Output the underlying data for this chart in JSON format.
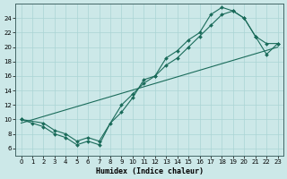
{
  "xlabel": "Humidex (Indice chaleur)",
  "bg_color": "#cce8e8",
  "line_color": "#1a6b5a",
  "grid_color": "#aad4d4",
  "xlim": [
    -0.5,
    23.5
  ],
  "ylim": [
    5,
    26
  ],
  "xticks": [
    0,
    1,
    2,
    3,
    4,
    5,
    6,
    7,
    8,
    9,
    10,
    11,
    12,
    13,
    14,
    15,
    16,
    17,
    18,
    19,
    20,
    21,
    22,
    23
  ],
  "yticks": [
    6,
    8,
    10,
    12,
    14,
    16,
    18,
    20,
    22,
    24
  ],
  "line1_x": [
    0,
    1,
    2,
    3,
    4,
    5,
    6,
    7,
    8,
    9,
    10,
    11,
    12,
    13,
    14,
    15,
    16,
    17,
    18,
    19,
    20,
    21,
    22,
    23
  ],
  "line1_y": [
    10,
    9.5,
    9.0,
    8.0,
    7.5,
    6.5,
    7.0,
    6.5,
    9.5,
    11.0,
    13.0,
    15.5,
    16.0,
    18.5,
    19.5,
    21.0,
    22.0,
    24.5,
    25.5,
    25.0,
    24.0,
    21.5,
    19.0,
    20.5
  ],
  "line2_x": [
    0,
    2,
    3,
    4,
    5,
    6,
    7,
    9,
    10,
    11,
    12,
    13,
    14,
    15,
    16,
    17,
    18,
    19,
    20,
    21,
    22,
    23
  ],
  "line2_y": [
    10,
    9.5,
    8.5,
    8.0,
    7.0,
    7.5,
    7.0,
    12.0,
    13.5,
    15.0,
    16.0,
    17.5,
    18.5,
    20.0,
    21.5,
    23.0,
    24.5,
    25.0,
    24.0,
    21.5,
    20.5,
    20.5
  ],
  "line3_x": [
    0,
    23
  ],
  "line3_y": [
    9.5,
    20.0
  ]
}
